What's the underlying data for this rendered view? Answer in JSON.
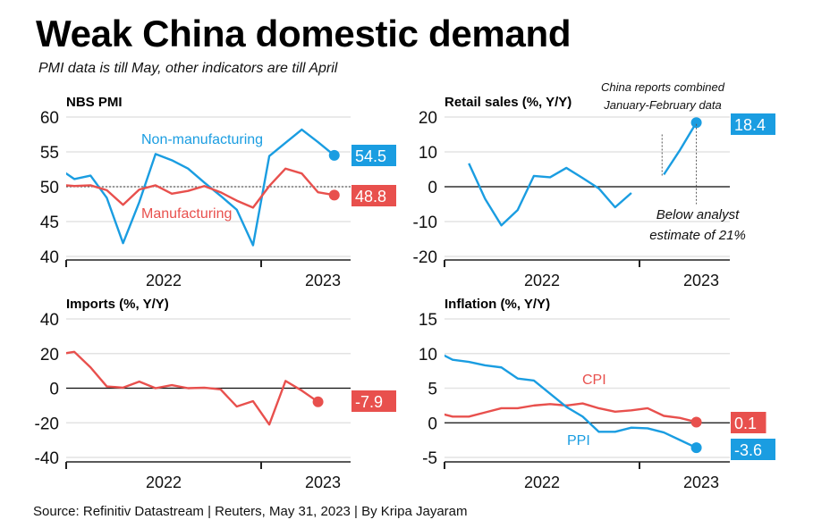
{
  "title": "Weak China domestic demand",
  "subtitle": "PMI data is till May, other indicators are till April",
  "source": "Source: Refinitiv Datastream | Reuters, May 31, 2023 | By Kripa Jayaram",
  "colors": {
    "blue": "#1a9de1",
    "red": "#e8504d",
    "grid": "#e3e3e3"
  },
  "chart_data": [
    {
      "type": "line",
      "title": "NBS PMI",
      "ylim": [
        40,
        60
      ],
      "yticks": [
        "40",
        "45",
        "50",
        "55",
        "60"
      ],
      "xticks": [
        "2022",
        "2023"
      ],
      "reference_line": 50,
      "series": [
        {
          "name": "Non-manufacturing",
          "color": "blue",
          "end_label": "54.5",
          "x": [
            "2021-12",
            "2022-01",
            "2022-02",
            "2022-03",
            "2022-04",
            "2022-05",
            "2022-06",
            "2022-07",
            "2022-08",
            "2022-09",
            "2022-10",
            "2022-11",
            "2022-12",
            "2023-01",
            "2023-02",
            "2023-03",
            "2023-04",
            "2023-05"
          ],
          "values": [
            52.7,
            51.1,
            51.6,
            48.4,
            41.9,
            47.8,
            54.7,
            53.8,
            52.6,
            50.6,
            48.7,
            46.7,
            41.6,
            54.4,
            56.3,
            58.2,
            56.4,
            54.5
          ]
        },
        {
          "name": "Manufacturing",
          "color": "red",
          "end_label": "48.8",
          "x": [
            "2021-12",
            "2022-01",
            "2022-02",
            "2022-03",
            "2022-04",
            "2022-05",
            "2022-06",
            "2022-07",
            "2022-08",
            "2022-09",
            "2022-10",
            "2022-11",
            "2022-12",
            "2023-01",
            "2023-02",
            "2023-03",
            "2023-04",
            "2023-05"
          ],
          "values": [
            50.3,
            50.1,
            50.2,
            49.5,
            47.4,
            49.6,
            50.2,
            49.0,
            49.4,
            50.1,
            49.2,
            48.0,
            47.0,
            50.1,
            52.6,
            51.9,
            49.2,
            48.8
          ]
        }
      ]
    },
    {
      "type": "line",
      "title": "Retail sales (%, Y/Y)",
      "ylim": [
        -20,
        20
      ],
      "yticks": [
        "-20",
        "-10",
        "0",
        "10",
        "20"
      ],
      "xticks": [
        "2022",
        "2023"
      ],
      "reference_line": 0,
      "annotations": [
        "China reports combined",
        "January-February data",
        "Below analyst",
        "estimate of 21%"
      ],
      "series": [
        {
          "name": "Retail sales",
          "color": "blue",
          "end_label": "18.4",
          "segments": [
            {
              "x": [
                "2022-02",
                "2022-03",
                "2022-04",
                "2022-05",
                "2022-06",
                "2022-07",
                "2022-08",
                "2022-09",
                "2022-10",
                "2022-11",
                "2022-12"
              ],
              "values": [
                6.7,
                -3.5,
                -11.1,
                -6.7,
                3.1,
                2.7,
                5.4,
                2.5,
                -0.5,
                -5.9,
                -1.8
              ]
            },
            {
              "x": [
                "2023-02",
                "2023-03",
                "2023-04"
              ],
              "values": [
                3.5,
                10.6,
                18.4
              ]
            }
          ]
        }
      ]
    },
    {
      "type": "line",
      "title": "Imports (%, Y/Y)",
      "ylim": [
        -40,
        40
      ],
      "yticks": [
        "-40",
        "-20",
        "0",
        "20",
        "40"
      ],
      "xticks": [
        "2022",
        "2023"
      ],
      "reference_line": 0,
      "series": [
        {
          "name": "Imports",
          "color": "red",
          "end_label": "-7.9",
          "x": [
            "2021-12",
            "2022-01",
            "2022-02",
            "2022-03",
            "2022-04",
            "2022-05",
            "2022-06",
            "2022-07",
            "2022-08",
            "2022-09",
            "2022-10",
            "2022-11",
            "2022-12",
            "2023-01",
            "2023-02",
            "2023-03",
            "2023-04"
          ],
          "values": [
            19.5,
            21.0,
            12.0,
            1.0,
            0.3,
            3.8,
            0.0,
            1.8,
            0.0,
            0.3,
            -0.7,
            -10.6,
            -7.5,
            -21.0,
            4.2,
            -1.4,
            -7.9
          ]
        }
      ]
    },
    {
      "type": "line",
      "title": "Inflation (%, Y/Y)",
      "ylim": [
        -5,
        15
      ],
      "yticks": [
        "-5",
        "0",
        "5",
        "10",
        "15"
      ],
      "xticks": [
        "2022",
        "2023"
      ],
      "reference_line": 0,
      "series": [
        {
          "name": "CPI",
          "color": "red",
          "end_label": "0.1",
          "x": [
            "2021-12",
            "2022-01",
            "2022-02",
            "2022-03",
            "2022-04",
            "2022-05",
            "2022-06",
            "2022-07",
            "2022-08",
            "2022-09",
            "2022-10",
            "2022-11",
            "2022-12",
            "2023-01",
            "2023-02",
            "2023-03",
            "2023-04"
          ],
          "values": [
            1.5,
            0.9,
            0.9,
            1.5,
            2.1,
            2.1,
            2.5,
            2.7,
            2.5,
            2.8,
            2.1,
            1.6,
            1.8,
            2.1,
            1.0,
            0.7,
            0.1
          ]
        },
        {
          "name": "PPI",
          "color": "blue",
          "end_label": "-3.6",
          "x": [
            "2021-12",
            "2022-01",
            "2022-02",
            "2022-03",
            "2022-04",
            "2022-05",
            "2022-06",
            "2022-07",
            "2022-08",
            "2022-09",
            "2022-10",
            "2022-11",
            "2022-12",
            "2023-01",
            "2023-02",
            "2023-03",
            "2023-04"
          ],
          "values": [
            10.3,
            9.1,
            8.8,
            8.3,
            8.0,
            6.4,
            6.1,
            4.2,
            2.3,
            0.9,
            -1.3,
            -1.3,
            -0.7,
            -0.8,
            -1.4,
            -2.5,
            -3.6
          ]
        }
      ]
    }
  ]
}
